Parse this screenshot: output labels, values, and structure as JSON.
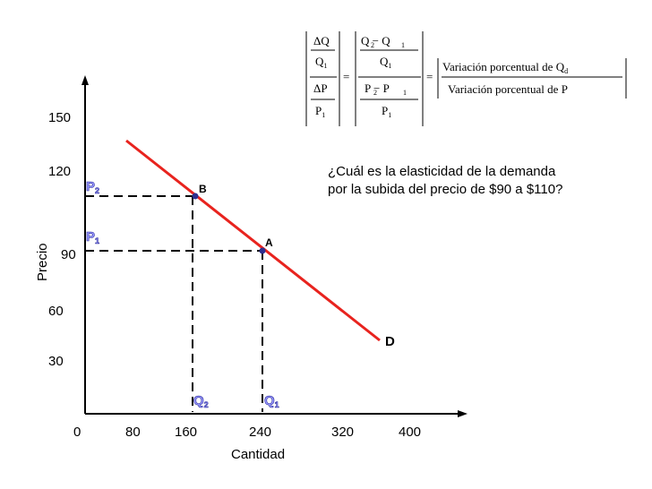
{
  "chart_data": {
    "type": "line",
    "xlabel": "Cantidad",
    "ylabel": "Precio",
    "xlim": [
      0,
      400
    ],
    "ylim": [
      0,
      150
    ],
    "x_ticks": [
      "0",
      "80",
      "160",
      "240",
      "320",
      "400"
    ],
    "y_ticks": [
      "30",
      "60",
      "90",
      "120",
      "150"
    ],
    "series": [
      {
        "name": "D",
        "color": "#e8231e",
        "x": [
          60,
          360
        ],
        "y": [
          135,
          52
        ]
      }
    ],
    "points": [
      {
        "label": "A",
        "x": 240,
        "y": 90
      },
      {
        "label": "B",
        "x": 165,
        "y": 110
      }
    ],
    "guide_labels": {
      "P2": {
        "main": "P",
        "sub": "2"
      },
      "P1": {
        "main": "P",
        "sub": "1"
      },
      "Q2": {
        "main": "Q",
        "sub": "2"
      },
      "Q1": {
        "main": "Q",
        "sub": "1"
      }
    },
    "guide_label_color": "#9999ff"
  },
  "formula": {
    "delta_q": "ΔQ",
    "q1": "Q",
    "q1_sub": "1",
    "delta_p": "ΔP",
    "p1": "P",
    "p1_sub": "1",
    "eq": "=",
    "q2_minus_q1": "Q − Q",
    "q2_sub": "2",
    "p2_minus_p1": "P − P",
    "p2_sub": "2",
    "variacion_qd": "Variación porcentual  de  Q",
    "qd_sub": "d",
    "variacion_p": "Variación porcentual  de  P"
  },
  "question": {
    "line1": "¿Cuál es la elasticidad de la demanda",
    "line2": "por la subida del precio de $90 a $110?"
  }
}
